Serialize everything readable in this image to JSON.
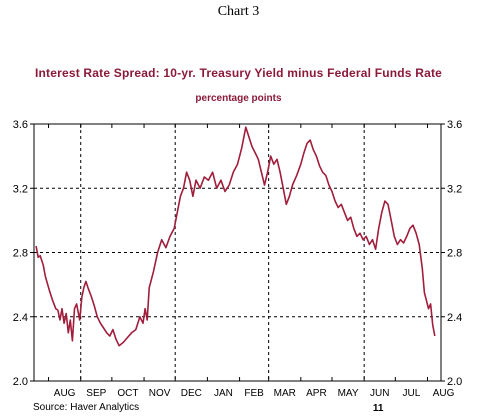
{
  "header": {
    "chart_number": "Chart 3",
    "source": "Source: Haver Analytics"
  },
  "colors": {
    "series": "#a01e3c",
    "title": "#8b1a3a"
  },
  "chart_data": {
    "type": "line",
    "title": "Interest Rate Spread: 10-yr. Treasury Yield minus Federal Funds Rate",
    "subtitle": "percentage points",
    "xlabel": "",
    "ylabel": "",
    "ylim": [
      2.0,
      3.6
    ],
    "yticks": [
      "2.0",
      "2.4",
      "2.8",
      "3.2",
      "3.6"
    ],
    "months": [
      "AUG",
      "SEP",
      "OCT",
      "NOV",
      "DEC",
      "JAN",
      "FEB",
      "MAR",
      "APR",
      "MAY",
      "JUN",
      "JUL",
      "AUG"
    ],
    "year_label": "11",
    "grid": true,
    "series": [
      {
        "values": [
          [
            "2010-07-20",
            2.84
          ],
          [
            "2010-07-22",
            2.77
          ],
          [
            "2010-07-24",
            2.78
          ],
          [
            "2010-07-27",
            2.72
          ],
          [
            "2010-07-29",
            2.65
          ],
          [
            "2010-08-02",
            2.56
          ],
          [
            "2010-08-05",
            2.5
          ],
          [
            "2010-08-08",
            2.45
          ],
          [
            "2010-08-10",
            2.44
          ],
          [
            "2010-08-12",
            2.38
          ],
          [
            "2010-08-14",
            2.45
          ],
          [
            "2010-08-16",
            2.36
          ],
          [
            "2010-08-18",
            2.42
          ],
          [
            "2010-08-20",
            2.3
          ],
          [
            "2010-08-22",
            2.38
          ],
          [
            "2010-08-24",
            2.25
          ],
          [
            "2010-08-26",
            2.45
          ],
          [
            "2010-08-28",
            2.48
          ],
          [
            "2010-08-31",
            2.38
          ],
          [
            "2010-09-02",
            2.52
          ],
          [
            "2010-09-04",
            2.58
          ],
          [
            "2010-09-06",
            2.62
          ],
          [
            "2010-09-08",
            2.58
          ],
          [
            "2010-09-11",
            2.53
          ],
          [
            "2010-09-14",
            2.47
          ],
          [
            "2010-09-17",
            2.4
          ],
          [
            "2010-09-20",
            2.36
          ],
          [
            "2010-09-23",
            2.33
          ],
          [
            "2010-09-26",
            2.3
          ],
          [
            "2010-09-29",
            2.28
          ],
          [
            "2010-10-02",
            2.32
          ],
          [
            "2010-10-05",
            2.26
          ],
          [
            "2010-10-08",
            2.22
          ],
          [
            "2010-10-12",
            2.24
          ],
          [
            "2010-10-16",
            2.27
          ],
          [
            "2010-10-20",
            2.3
          ],
          [
            "2010-10-24",
            2.32
          ],
          [
            "2010-10-28",
            2.4
          ],
          [
            "2010-10-31",
            2.36
          ],
          [
            "2010-11-02",
            2.45
          ],
          [
            "2010-11-04",
            2.38
          ],
          [
            "2010-11-06",
            2.58
          ],
          [
            "2010-11-10",
            2.68
          ],
          [
            "2010-11-14",
            2.8
          ],
          [
            "2010-11-18",
            2.88
          ],
          [
            "2010-11-22",
            2.83
          ],
          [
            "2010-11-26",
            2.9
          ],
          [
            "2010-11-30",
            2.95
          ],
          [
            "2010-12-03",
            3.05
          ],
          [
            "2010-12-06",
            3.15
          ],
          [
            "2010-12-09",
            3.2
          ],
          [
            "2010-12-12",
            3.3
          ],
          [
            "2010-12-15",
            3.25
          ],
          [
            "2010-12-18",
            3.15
          ],
          [
            "2010-12-21",
            3.25
          ],
          [
            "2010-12-25",
            3.2
          ],
          [
            "2010-12-29",
            3.27
          ],
          [
            "2011-01-02",
            3.25
          ],
          [
            "2011-01-06",
            3.3
          ],
          [
            "2011-01-10",
            3.2
          ],
          [
            "2011-01-14",
            3.25
          ],
          [
            "2011-01-18",
            3.18
          ],
          [
            "2011-01-22",
            3.22
          ],
          [
            "2011-01-26",
            3.3
          ],
          [
            "2011-01-30",
            3.35
          ],
          [
            "2011-02-03",
            3.45
          ],
          [
            "2011-02-07",
            3.58
          ],
          [
            "2011-02-10",
            3.52
          ],
          [
            "2011-02-13",
            3.46
          ],
          [
            "2011-02-16",
            3.42
          ],
          [
            "2011-02-19",
            3.38
          ],
          [
            "2011-02-22",
            3.3
          ],
          [
            "2011-02-25",
            3.22
          ],
          [
            "2011-02-28",
            3.3
          ],
          [
            "2011-03-03",
            3.4
          ],
          [
            "2011-03-06",
            3.35
          ],
          [
            "2011-03-09",
            3.38
          ],
          [
            "2011-03-12",
            3.3
          ],
          [
            "2011-03-15",
            3.2
          ],
          [
            "2011-03-18",
            3.1
          ],
          [
            "2011-03-21",
            3.15
          ],
          [
            "2011-03-24",
            3.22
          ],
          [
            "2011-03-28",
            3.28
          ],
          [
            "2011-04-01",
            3.35
          ],
          [
            "2011-04-04",
            3.42
          ],
          [
            "2011-04-07",
            3.48
          ],
          [
            "2011-04-10",
            3.5
          ],
          [
            "2011-04-13",
            3.44
          ],
          [
            "2011-04-16",
            3.4
          ],
          [
            "2011-04-19",
            3.34
          ],
          [
            "2011-04-22",
            3.3
          ],
          [
            "2011-04-25",
            3.28
          ],
          [
            "2011-04-28",
            3.22
          ],
          [
            "2011-05-01",
            3.18
          ],
          [
            "2011-05-04",
            3.12
          ],
          [
            "2011-05-07",
            3.08
          ],
          [
            "2011-05-10",
            3.1
          ],
          [
            "2011-05-13",
            3.05
          ],
          [
            "2011-05-16",
            3.0
          ],
          [
            "2011-05-19",
            3.02
          ],
          [
            "2011-05-22",
            2.95
          ],
          [
            "2011-05-25",
            2.9
          ],
          [
            "2011-05-28",
            2.92
          ],
          [
            "2011-05-31",
            2.88
          ],
          [
            "2011-06-03",
            2.9
          ],
          [
            "2011-06-06",
            2.85
          ],
          [
            "2011-06-09",
            2.88
          ],
          [
            "2011-06-12",
            2.82
          ],
          [
            "2011-06-15",
            2.95
          ],
          [
            "2011-06-18",
            3.05
          ],
          [
            "2011-06-21",
            3.12
          ],
          [
            "2011-06-24",
            3.1
          ],
          [
            "2011-06-27",
            3.0
          ],
          [
            "2011-06-30",
            2.9
          ],
          [
            "2011-07-03",
            2.85
          ],
          [
            "2011-07-06",
            2.88
          ],
          [
            "2011-07-09",
            2.86
          ],
          [
            "2011-07-12",
            2.9
          ],
          [
            "2011-07-15",
            2.95
          ],
          [
            "2011-07-18",
            2.97
          ],
          [
            "2011-07-21",
            2.92
          ],
          [
            "2011-07-24",
            2.85
          ],
          [
            "2011-07-27",
            2.7
          ],
          [
            "2011-07-29",
            2.55
          ],
          [
            "2011-07-31",
            2.5
          ],
          [
            "2011-08-02",
            2.45
          ],
          [
            "2011-08-04",
            2.48
          ],
          [
            "2011-08-06",
            2.35
          ],
          [
            "2011-08-08",
            2.28
          ]
        ]
      }
    ]
  }
}
